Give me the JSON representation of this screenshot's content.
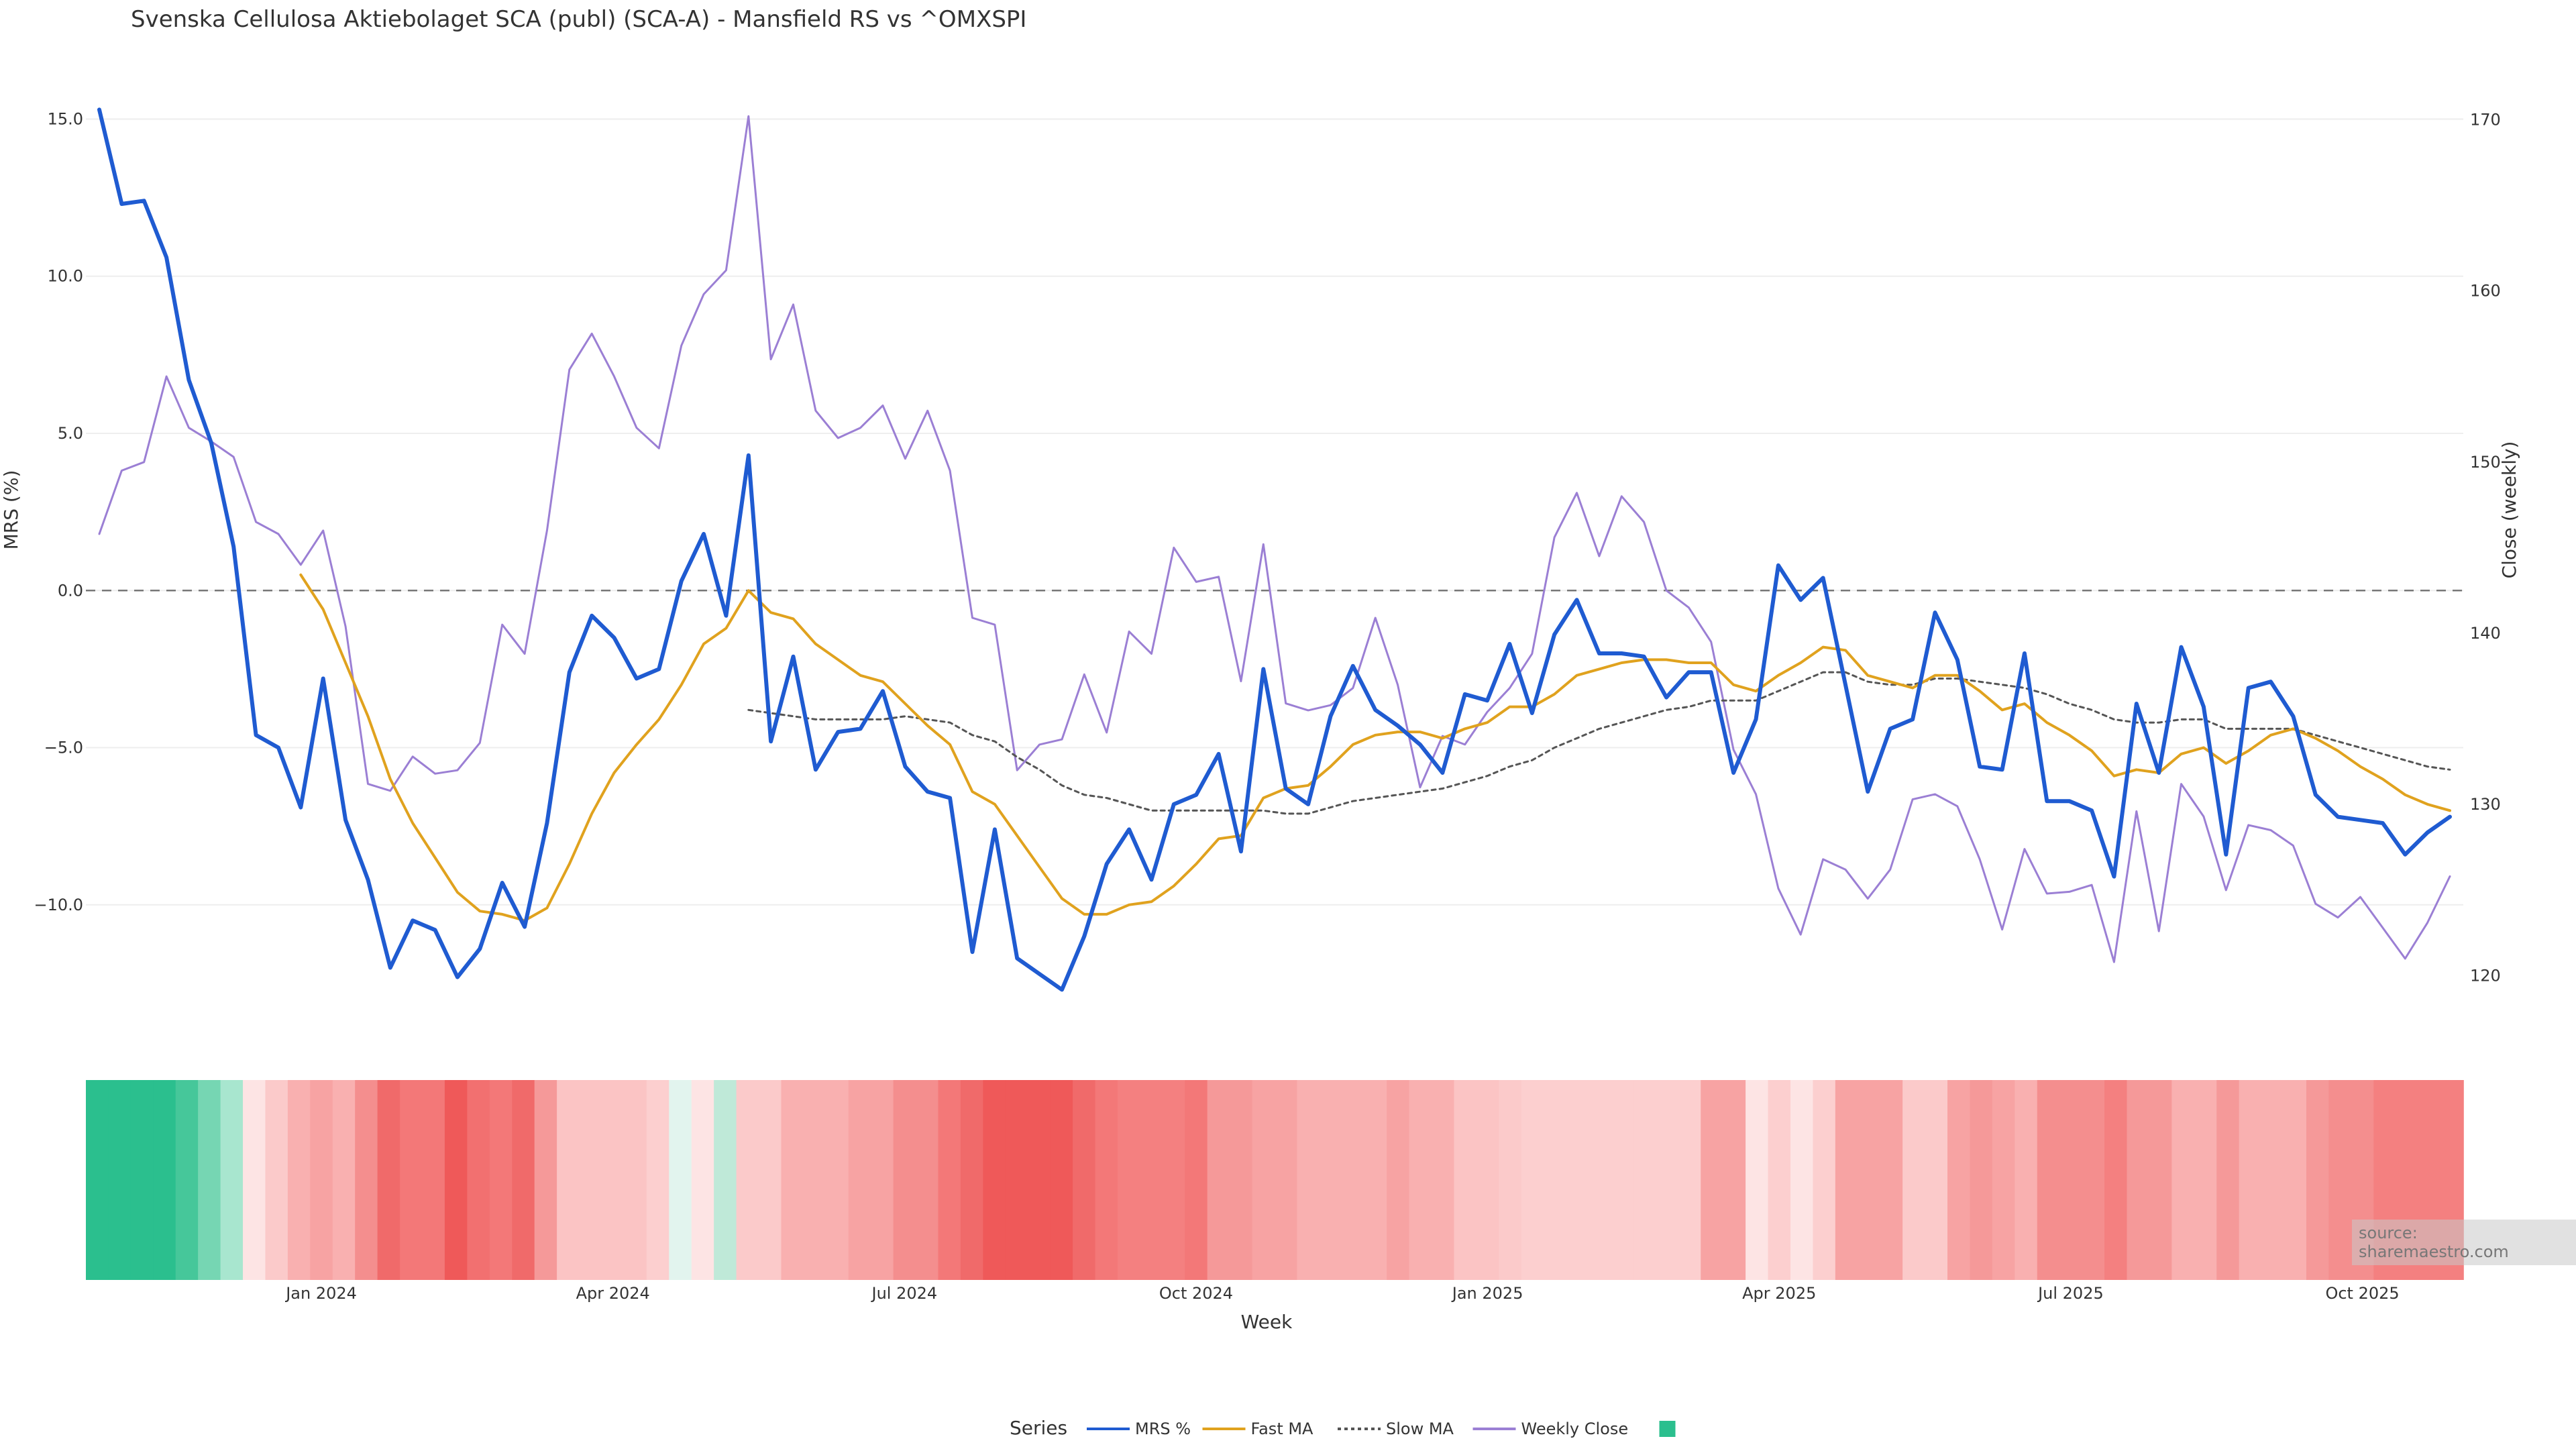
{
  "chart_data": {
    "type": "line",
    "title": "Svenska Cellulosa Aktiebolaget SCA (publ) (SCA-A) - Mansfield RS vs ^OMXSPI",
    "xlabel": "Week",
    "ylabel_left": "MRS (%)",
    "ylabel_right": "Close (weekly)",
    "ylim_left": [
      -12.8,
      15.8
    ],
    "ylim_right": [
      119.0,
      171.5
    ],
    "yticks_left": [
      15.0,
      10.0,
      5.0,
      0.0,
      -5.0,
      -10.0
    ],
    "yticks_left_labels": [
      "15.0",
      "10.0",
      "5.0",
      "0.0",
      "−5.0",
      "−10.0"
    ],
    "yticks_right": [
      170,
      160,
      150,
      140,
      130,
      120
    ],
    "yticks_right_labels": [
      "170",
      "160",
      "150",
      "140",
      "130",
      "120"
    ],
    "x_ticks": [
      {
        "label": "Jan 2024",
        "week": 10
      },
      {
        "label": "Apr 2024",
        "week": 23
      },
      {
        "label": "Jul 2024",
        "week": 36
      },
      {
        "label": "Oct 2024",
        "week": 49
      },
      {
        "label": "Jan 2025",
        "week": 62
      },
      {
        "label": "Apr 2025",
        "week": 75
      },
      {
        "label": "Jul 2025",
        "week": 88
      },
      {
        "label": "Oct 2025",
        "week": 101
      }
    ],
    "n_weeks": 106,
    "series": [
      {
        "name": "MRS %",
        "color": "#1f5bd1",
        "axis": "left",
        "values": [
          15.3,
          12.3,
          12.4,
          10.6,
          6.7,
          4.7,
          1.4,
          -4.6,
          -5.0,
          -6.9,
          -2.8,
          -7.3,
          -9.2,
          -12.0,
          -10.5,
          -10.8,
          -12.3,
          -11.4,
          -9.3,
          -10.7,
          -7.4,
          -2.6,
          -0.8,
          -1.5,
          -2.8,
          -2.5,
          0.3,
          1.8,
          -0.8,
          4.3,
          -4.8,
          -2.1,
          -5.7,
          -4.5,
          -4.4,
          -3.2,
          -5.6,
          -6.4,
          -6.6,
          -11.5,
          -7.6,
          -11.7,
          -12.2,
          -12.7,
          -11.0,
          -8.7,
          -7.6,
          -9.2,
          -6.8,
          -6.5,
          -5.2,
          -8.3,
          -2.5,
          -6.3,
          -6.8,
          -4.0,
          -2.4,
          -3.8,
          -4.3,
          -4.9,
          -5.8,
          -3.3,
          -3.5,
          -1.7,
          -3.9,
          -1.4,
          -0.3,
          -2.0,
          -2.0,
          -2.1,
          -3.4,
          -2.6,
          -2.6,
          -5.8,
          -4.1,
          0.8,
          -0.3,
          0.4,
          -3.0,
          -6.4,
          -4.4,
          -4.1,
          -0.7,
          -2.2,
          -5.6,
          -5.7,
          -2.0,
          -6.7,
          -6.7,
          -7.0,
          -9.1,
          -3.6,
          -5.8,
          -1.8,
          -3.7,
          -8.4,
          -3.1,
          -2.9,
          -4.0,
          -6.5,
          -7.2,
          -7.3,
          -7.4,
          -8.4,
          -7.7,
          -7.2
        ]
      },
      {
        "name": "Fast MA",
        "color": "#e0a21e",
        "axis": "left",
        "values": [
          null,
          null,
          null,
          null,
          null,
          null,
          null,
          null,
          null,
          0.5,
          -0.6,
          -2.3,
          -4.0,
          -6.0,
          -7.4,
          -8.5,
          -9.6,
          -10.2,
          -10.3,
          -10.5,
          -10.1,
          -8.7,
          -7.1,
          -5.8,
          -4.9,
          -4.1,
          -3.0,
          -1.7,
          -1.2,
          0.0,
          -0.7,
          -0.9,
          -1.7,
          -2.2,
          -2.7,
          -2.9,
          -3.6,
          -4.3,
          -4.9,
          -6.4,
          -6.8,
          -7.8,
          -8.8,
          -9.8,
          -10.3,
          -10.3,
          -10.0,
          -9.9,
          -9.4,
          -8.7,
          -7.9,
          -7.8,
          -6.6,
          -6.3,
          -6.2,
          -5.6,
          -4.9,
          -4.6,
          -4.5,
          -4.5,
          -4.7,
          -4.4,
          -4.2,
          -3.7,
          -3.7,
          -3.3,
          -2.7,
          -2.5,
          -2.3,
          -2.2,
          -2.2,
          -2.3,
          -2.3,
          -3.0,
          -3.2,
          -2.7,
          -2.3,
          -1.8,
          -1.9,
          -2.7,
          -2.9,
          -3.1,
          -2.7,
          -2.7,
          -3.2,
          -3.8,
          -3.6,
          -4.2,
          -4.6,
          -5.1,
          -5.9,
          -5.7,
          -5.8,
          -5.2,
          -5.0,
          -5.5,
          -5.1,
          -4.6,
          -4.4,
          -4.7,
          -5.1,
          -5.6,
          -6.0,
          -6.5,
          -6.8,
          -7.0
        ]
      },
      {
        "name": "Slow MA",
        "color": "#555555",
        "axis": "left",
        "dash": true,
        "values": [
          null,
          null,
          null,
          null,
          null,
          null,
          null,
          null,
          null,
          null,
          null,
          null,
          null,
          null,
          null,
          null,
          null,
          null,
          null,
          null,
          null,
          null,
          null,
          null,
          null,
          null,
          null,
          null,
          null,
          -3.8,
          -3.9,
          -4.0,
          -4.1,
          -4.1,
          -4.1,
          -4.1,
          -4.0,
          -4.1,
          -4.2,
          -4.6,
          -4.8,
          -5.3,
          -5.7,
          -6.2,
          -6.5,
          -6.6,
          -6.8,
          -7.0,
          -7.0,
          -7.0,
          -7.0,
          -7.0,
          -7.0,
          -7.1,
          -7.1,
          -6.9,
          -6.7,
          -6.6,
          -6.5,
          -6.4,
          -6.3,
          -6.1,
          -5.9,
          -5.6,
          -5.4,
          -5.0,
          -4.7,
          -4.4,
          -4.2,
          -4.0,
          -3.8,
          -3.7,
          -3.5,
          -3.5,
          -3.5,
          -3.2,
          -2.9,
          -2.6,
          -2.6,
          -2.9,
          -3.0,
          -3.0,
          -2.8,
          -2.8,
          -2.9,
          -3.0,
          -3.1,
          -3.3,
          -3.6,
          -3.8,
          -4.1,
          -4.2,
          -4.2,
          -4.1,
          -4.1,
          -4.4,
          -4.4,
          -4.4,
          -4.4,
          -4.6,
          -4.8,
          -5.0,
          -5.2,
          -5.4,
          -5.6,
          -5.7
        ]
      },
      {
        "name": "Weekly Close",
        "color": "#9b7fd4",
        "axis": "right",
        "values": [
          145.8,
          149.5,
          150.0,
          155.0,
          152.0,
          151.2,
          150.3,
          146.5,
          145.8,
          144.0,
          146.0,
          140.4,
          131.2,
          130.8,
          132.8,
          131.8,
          132.0,
          133.6,
          140.5,
          138.8,
          146.0,
          155.4,
          157.5,
          155.0,
          152.0,
          150.8,
          156.8,
          159.8,
          161.2,
          170.2,
          156.0,
          159.2,
          153.0,
          151.4,
          152.0,
          153.3,
          150.2,
          153.0,
          149.5,
          140.9,
          140.5,
          132.0,
          133.5,
          133.8,
          137.6,
          134.2,
          140.1,
          138.8,
          145.0,
          143.0,
          143.3,
          137.2,
          145.2,
          135.9,
          135.5,
          135.8,
          136.8,
          140.9,
          137.0,
          131.0,
          134.0,
          133.5,
          135.4,
          136.8,
          138.8,
          145.6,
          148.2,
          144.5,
          148.0,
          146.5,
          142.5,
          141.5,
          139.5,
          133.2,
          130.6,
          125.1,
          122.4,
          126.8,
          126.2,
          124.5,
          126.2,
          130.3,
          130.6,
          129.9,
          126.8,
          122.7,
          127.4,
          124.8,
          124.9,
          125.3,
          120.8,
          129.6,
          122.6,
          131.2,
          129.3,
          125.0,
          128.8,
          128.5,
          127.6,
          124.2,
          123.4,
          124.6,
          122.8,
          121.0,
          123.1,
          125.8
        ]
      }
    ],
    "heatmap_strip": {
      "description": "weekly MRS colour band",
      "colors": [
        "#2bbf8e",
        "#2bbf8e",
        "#2bbf8e",
        "#2bbf8e",
        "#46c79a",
        "#76d6b3",
        "#a8e6cf",
        "#fde4e4",
        "#fbcaca",
        "#f9b0b0",
        "#f7a3a3",
        "#f9b0b0",
        "#f48e8e",
        "#f06a6a",
        "#f37878",
        "#f37878",
        "#ef5959",
        "#f27070",
        "#f37878",
        "#f06a6a",
        "#f59999",
        "#fbc4c4",
        "#fbc4c4",
        "#fbc4c4",
        "#fbc4c4",
        "#fccfcf",
        "#e2f4ee",
        "#fde4e4",
        "#bfe9d8",
        "#fbcaca",
        "#fbcaca",
        "#f9b0b0",
        "#f9b0b0",
        "#f9b0b0",
        "#f7a3a3",
        "#f7a3a3",
        "#f48e8e",
        "#f48e8e",
        "#f37878",
        "#f06a6a",
        "#ef5959",
        "#ef5959",
        "#ef5959",
        "#ef5959",
        "#f06a6a",
        "#f37878",
        "#f48080",
        "#f48080",
        "#f48080",
        "#f37878",
        "#f59999",
        "#f59999",
        "#f7a3a3",
        "#f7a3a3",
        "#f9b0b0",
        "#f9b0b0",
        "#f9b0b0",
        "#f9b0b0",
        "#f7a3a3",
        "#f9b0b0",
        "#f9b0b0",
        "#fbc4c4",
        "#fbc4c4",
        "#fbcaca",
        "#fccfcf",
        "#fccfcf",
        "#fccfcf",
        "#fccfcf",
        "#fccfcf",
        "#fccfcf",
        "#fccfcf",
        "#fccfcf",
        "#f7a3a3",
        "#f7a3a3",
        "#fde4e4",
        "#fccfcf",
        "#fde4e4",
        "#fccfcf",
        "#f7a3a3",
        "#f7a3a3",
        "#f7a3a3",
        "#fbcaca",
        "#fbcaca",
        "#f7a3a3",
        "#f59999",
        "#f7a3a3",
        "#f9b0b0",
        "#f48e8e",
        "#f48e8e",
        "#f48e8e",
        "#f48080",
        "#f59999",
        "#f59999",
        "#f9b0b0",
        "#f9b0b0",
        "#f59999",
        "#f9b0b0",
        "#f9b0b0",
        "#f9b0b0",
        "#f59999",
        "#f48e8e",
        "#f48e8e",
        "#f48080",
        "#f48080",
        "#f48080",
        "#f48080"
      ]
    },
    "legend": {
      "title": "Series",
      "items": [
        {
          "label": "MRS %",
          "color": "#1f5bd1",
          "style": "solid"
        },
        {
          "label": "Fast MA",
          "color": "#e0a21e",
          "style": "solid"
        },
        {
          "label": "Slow MA",
          "color": "#555555",
          "style": "dotted"
        },
        {
          "label": "Weekly Close",
          "color": "#9b7fd4",
          "style": "solid"
        },
        {
          "label": "",
          "color": "#2bbf8e",
          "style": "square"
        }
      ]
    },
    "zero_line": true
  },
  "source_text": "source: sharemaestro.com"
}
